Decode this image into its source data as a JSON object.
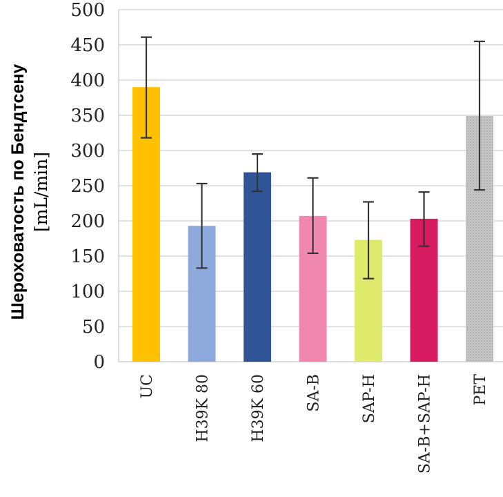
{
  "chart_data": {
    "type": "bar",
    "title": "",
    "xlabel": "",
    "ylabel": "Шероховатость по Бендтсену",
    "ylabel_unit": "[mL/min]",
    "ylim": [
      0,
      500
    ],
    "yticks": [
      0,
      50,
      100,
      150,
      200,
      250,
      300,
      350,
      400,
      450,
      500
    ],
    "grid": true,
    "legend": "none",
    "categories": [
      "UC",
      "H39K 80",
      "H39K 60",
      "SA-B",
      "SAP-H",
      "SA-B+SAP-H",
      "PET"
    ],
    "values": [
      390,
      193,
      269,
      207,
      173,
      203,
      349
    ],
    "error_low": [
      318,
      133,
      242,
      154,
      118,
      164,
      244
    ],
    "error_high": [
      461,
      253,
      295,
      261,
      227,
      241,
      455
    ],
    "colors": [
      "#FFC000",
      "#8EA9DB",
      "#2F5597",
      "#F087AE",
      "#DDEA6A",
      "#D81B60",
      "#BFBFBF"
    ],
    "bar_patterns": [
      "solid",
      "solid",
      "solid",
      "solid",
      "solid",
      "solid",
      "dotted"
    ]
  }
}
